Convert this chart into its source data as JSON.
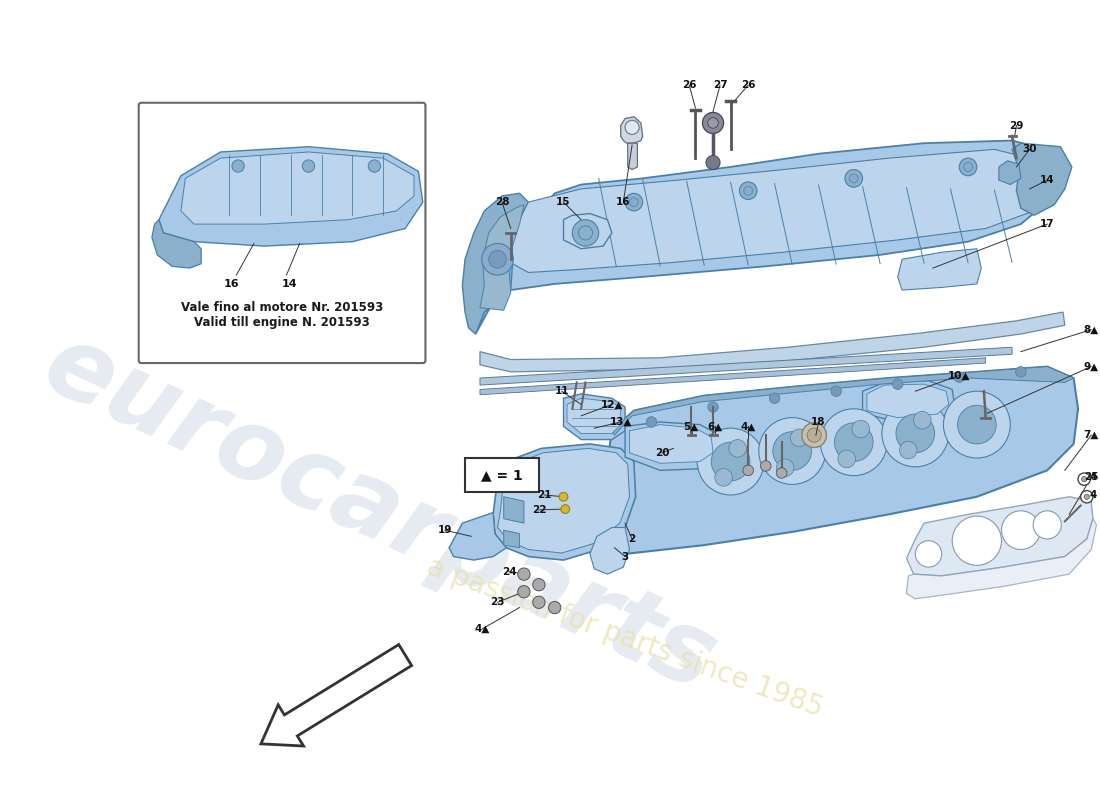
{
  "bg_color": "#ffffff",
  "inset_text1": "Vale fino al motore Nr. 201593",
  "inset_text2": "Valid till engine N. 201593",
  "legend_text": "▲ = 1",
  "cc": "#a8c8e8",
  "ce": "#4a80a8",
  "cc2": "#bdd5ec",
  "cc3": "#8ab0cc",
  "wm1_color": "#c8d4e0",
  "wm2_color": "#e8e0a8",
  "gasket_color": "#d0d8e4",
  "gasket_edge": "#8898a8"
}
